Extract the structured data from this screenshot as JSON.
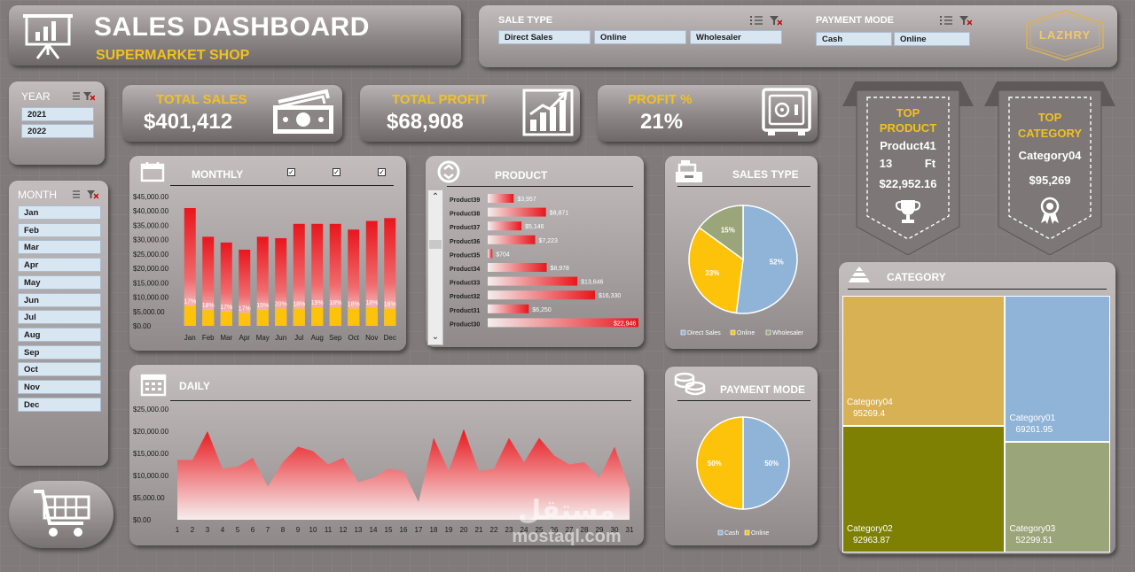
{
  "header": {
    "title": "SALES DASHBOARD",
    "subtitle": "SUPERMARKET SHOP"
  },
  "slicers": {
    "sale_type": {
      "label": "SALE TYPE",
      "options": [
        "Direct Sales",
        "Online",
        "Wholesaler"
      ]
    },
    "payment_mode": {
      "label": "PAYMENT MODE",
      "options": [
        "Cash",
        "Online"
      ]
    },
    "year": {
      "label": "YEAR",
      "options": [
        "2021",
        "2022"
      ]
    },
    "month": {
      "label": "MONTH",
      "options": [
        "Jan",
        "Feb",
        "Mar",
        "Apr",
        "May",
        "Jun",
        "Jul",
        "Aug",
        "Sep",
        "Oct",
        "Nov",
        "Dec"
      ]
    }
  },
  "logo": {
    "text": "LAZHRY"
  },
  "kpis": {
    "total_sales": {
      "label": "TOTAL SALES",
      "value": "$401,412"
    },
    "total_profit": {
      "label": "TOTAL PROFIT",
      "value": "$68,908"
    },
    "profit_pct": {
      "label": "PROFIT %",
      "value": "21%"
    }
  },
  "top_product": {
    "title_1": "TOP",
    "title_2": "PRODUCT",
    "name": "Product41",
    "qty": "13",
    "unit": "Ft",
    "value": "$22,952.16"
  },
  "top_category": {
    "title_1": "TOP",
    "title_2": "CATEGORY",
    "name": "Category04",
    "value": "$95,269"
  },
  "sections": {
    "monthly": "MONTHLY",
    "product": "PRODUCT",
    "sales_type": "SALES TYPE",
    "daily": "DAILY",
    "payment_mode": "PAYMENT MODE",
    "category": "CATEGORY"
  },
  "watermark": {
    "arabic": "مستقل",
    "latin": "mostaql.com"
  },
  "colors": {
    "red": "#e8161c",
    "gold": "#fdc20a",
    "blue": "#8fb4d7",
    "olive": "#9aa57a",
    "olive_dark": "#7e8003",
    "tan": "#d8b154"
  },
  "chart_data": [
    {
      "id": "monthly",
      "type": "bar",
      "categories": [
        "Jan",
        "Feb",
        "Mar",
        "Apr",
        "May",
        "Jun",
        "Jul",
        "Aug",
        "Sep",
        "Oct",
        "Nov",
        "Dec"
      ],
      "series": [
        {
          "name": "Sales",
          "values": [
            41000,
            31000,
            29000,
            26500,
            31000,
            30500,
            35500,
            35500,
            35500,
            33500,
            36500,
            37500
          ]
        },
        {
          "name": "Profit",
          "values": [
            7000,
            5500,
            5000,
            4500,
            5500,
            6000,
            6000,
            6500,
            6500,
            6000,
            6500,
            6000
          ]
        }
      ],
      "data_labels": [
        "17%",
        "18%",
        "17%",
        "17%",
        "15%",
        "20%",
        "18%",
        "19%",
        "18%",
        "18%",
        "18%",
        "16%"
      ],
      "ylim": [
        0,
        45000
      ],
      "yticks": [
        "$0.00",
        "$5,000.00",
        "$10,000.00",
        "$15,000.00",
        "$20,000.00",
        "$25,000.00",
        "$30,000.00",
        "$35,000.00",
        "$40,000.00",
        "$45,000.00"
      ]
    },
    {
      "id": "product",
      "type": "bar",
      "orientation": "horizontal",
      "categories": [
        "Product39",
        "Product38",
        "Product37",
        "Product36",
        "Product35",
        "Product34",
        "Product33",
        "Product32",
        "Product31",
        "Product30"
      ],
      "values": [
        3957,
        8871,
        5146,
        7223,
        704,
        8978,
        13646,
        16330,
        6250,
        22946
      ],
      "data_labels": [
        "$3,957",
        "$8,871",
        "$5,146",
        "$7,223",
        "$704",
        "$8,978",
        "$13,646",
        "$16,330",
        "$6,250",
        "$22,946"
      ]
    },
    {
      "id": "sales_type",
      "type": "pie",
      "labels": [
        "Direct Sales",
        "Online",
        "Wholesaler"
      ],
      "values": [
        52,
        33,
        15
      ],
      "data_labels": [
        "52%",
        "33%",
        "15%"
      ]
    },
    {
      "id": "daily",
      "type": "area",
      "x": [
        1,
        2,
        3,
        4,
        5,
        6,
        7,
        8,
        9,
        10,
        11,
        12,
        13,
        14,
        15,
        16,
        17,
        18,
        19,
        20,
        21,
        22,
        23,
        24,
        25,
        26,
        27,
        28,
        29,
        30,
        31
      ],
      "values": [
        13500,
        13500,
        20000,
        11500,
        12000,
        14000,
        7500,
        13000,
        16500,
        15500,
        12500,
        14000,
        8500,
        9500,
        11500,
        11000,
        4000,
        18500,
        11000,
        20500,
        11000,
        11500,
        18500,
        13000,
        18500,
        14500,
        12500,
        13000,
        9500,
        16500,
        7000
      ],
      "ylim": [
        0,
        25000
      ],
      "yticks": [
        "$0.00",
        "$5,000.00",
        "$10,000.00",
        "$15,000.00",
        "$20,000.00",
        "$25,000.00"
      ]
    },
    {
      "id": "payment_mode",
      "type": "pie",
      "labels": [
        "Cash",
        "Online"
      ],
      "values": [
        50,
        50
      ],
      "data_labels": [
        "50%",
        "50%"
      ]
    },
    {
      "id": "category",
      "type": "treemap",
      "labels": [
        "Category04",
        "Category01",
        "Category02",
        "Category03"
      ],
      "values": [
        95269.4,
        69261.95,
        92963.87,
        52299.51
      ],
      "value_labels": [
        "95269.4",
        "69261.95",
        "92963.87",
        "52299.51"
      ]
    }
  ]
}
